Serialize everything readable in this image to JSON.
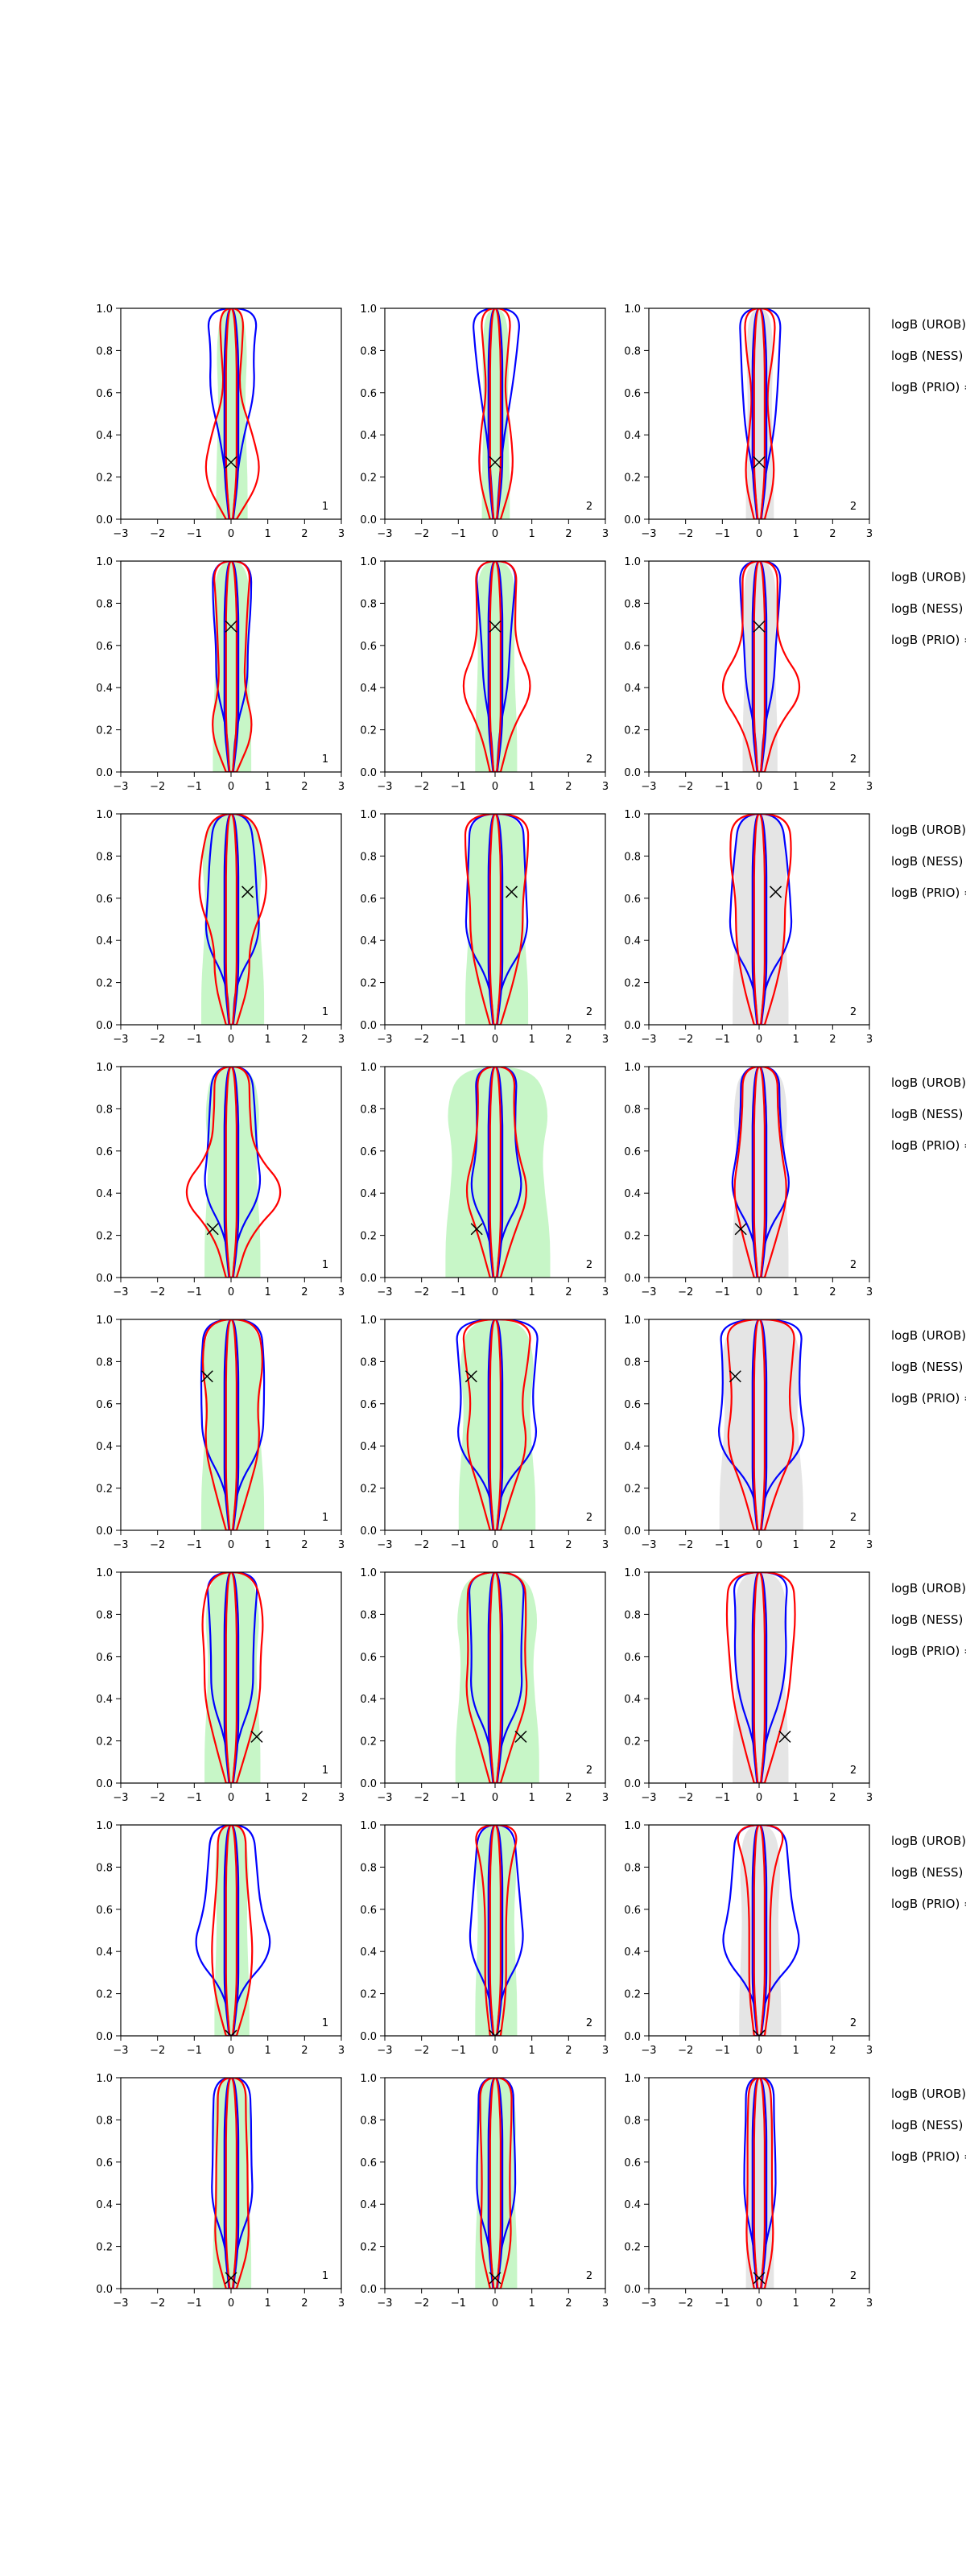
{
  "chart_data": {
    "type": "contour-grid",
    "title": "",
    "xlabel": "",
    "ylabel": "",
    "xlim": [
      -3,
      3
    ],
    "ylim": [
      0,
      1
    ],
    "x_ticks": [
      "−3",
      "−2",
      "−1",
      "0",
      "1",
      "2",
      "3"
    ],
    "y_ticks": [
      "0.0",
      "0.2",
      "0.4",
      "0.6",
      "0.8",
      "1.0"
    ],
    "grid": false,
    "colors": {
      "blue": "#0000ff",
      "red": "#ff0000",
      "green_fill": "#90ee90",
      "grey_fill": "#d3d3d3"
    },
    "side_labels": [
      "logB (UROB) =",
      "logB (NESS) =",
      "logB (PRIO) ="
    ],
    "rows": [
      {
        "marker": {
          "x": 0.0,
          "y": 0.27
        },
        "panels": [
          {
            "tag": "1",
            "fill": "green",
            "blue": [
              0.05,
              0.15,
              0.35,
              0.65,
              0.6,
              0.75
            ],
            "red": [
              0.15,
              0.85,
              0.6,
              0.2,
              0.3,
              0.35
            ],
            "inner_blue": [
              0.2,
              0.2
            ],
            "inner_red": [
              0.15,
              0.15
            ],
            "shade": [
              0.45,
              0.45
            ]
          },
          {
            "tag": "2",
            "fill": "green",
            "blue": [
              0.05,
              0.12,
              0.25,
              0.45,
              0.6,
              0.7
            ],
            "red": [
              0.15,
              0.5,
              0.45,
              0.25,
              0.35,
              0.45
            ],
            "inner_blue": [
              0.2,
              0.2
            ],
            "inner_red": [
              0.15,
              0.15
            ],
            "shade": [
              0.4,
              0.4
            ]
          },
          {
            "tag": "2",
            "fill": "grey",
            "blue": [
              0.05,
              0.15,
              0.4,
              0.5,
              0.55,
              0.6
            ],
            "red": [
              0.15,
              0.45,
              0.3,
              0.2,
              0.4,
              0.45
            ],
            "inner_blue": [
              0.2,
              0.2
            ],
            "inner_red": [
              0.15,
              0.15
            ],
            "shade": [
              0.4,
              0.4
            ]
          }
        ]
      },
      {
        "marker": {
          "x": 0.0,
          "y": 0.69
        },
        "panels": [
          {
            "tag": "1",
            "fill": "green",
            "blue": [
              0.05,
              0.12,
              0.45,
              0.45,
              0.55,
              0.55
            ],
            "red": [
              0.15,
              0.65,
              0.35,
              0.4,
              0.45,
              0.55
            ],
            "inner_blue": [
              0.2,
              0.2
            ],
            "inner_red": [
              0.15,
              0.15
            ],
            "shade": [
              0.55,
              0.55
            ]
          },
          {
            "tag": "2",
            "fill": "green",
            "blue": [
              0.05,
              0.12,
              0.35,
              0.4,
              0.5,
              0.6
            ],
            "red": [
              0.15,
              0.45,
              1.1,
              0.55,
              0.55,
              0.6
            ],
            "inner_blue": [
              0.2,
              0.2
            ],
            "inner_red": [
              0.15,
              0.15
            ],
            "shade": [
              0.6,
              0.6
            ]
          },
          {
            "tag": "2",
            "fill": "grey",
            "blue": [
              0.05,
              0.12,
              0.4,
              0.45,
              0.55,
              0.6
            ],
            "red": [
              0.15,
              0.45,
              1.3,
              0.5,
              0.5,
              0.5
            ],
            "inner_blue": [
              0.2,
              0.2
            ],
            "inner_red": [
              0.15,
              0.15
            ],
            "shade": [
              0.5,
              0.5
            ]
          }
        ]
      },
      {
        "marker": {
          "x": 0.45,
          "y": 0.63
        },
        "panels": [
          {
            "tag": "1",
            "fill": "green",
            "blue": [
              0.05,
              0.12,
              0.8,
              0.7,
              0.65,
              0.5
            ],
            "red": [
              0.15,
              0.5,
              0.5,
              1.0,
              0.9,
              0.6
            ],
            "inner_blue": [
              0.2,
              0.2
            ],
            "inner_red": [
              0.15,
              0.15
            ],
            "shade": [
              0.9,
              0.9
            ]
          },
          {
            "tag": "2",
            "fill": "green",
            "blue": [
              0.05,
              0.15,
              0.9,
              0.85,
              0.8,
              0.75
            ],
            "red": [
              0.15,
              0.5,
              0.75,
              0.75,
              0.9,
              0.9
            ],
            "inner_blue": [
              0.2,
              0.2
            ],
            "inner_red": [
              0.15,
              0.15
            ],
            "shade": [
              0.9,
              0.9
            ]
          },
          {
            "tag": "2",
            "fill": "grey",
            "blue": [
              0.05,
              0.15,
              0.9,
              0.85,
              0.75,
              0.6
            ],
            "red": [
              0.15,
              0.5,
              0.7,
              0.7,
              0.9,
              0.8
            ],
            "inner_blue": [
              0.2,
              0.2
            ],
            "inner_red": [
              0.15,
              0.15
            ],
            "shade": [
              0.8,
              0.8
            ]
          }
        ]
      },
      {
        "marker": {
          "x": -0.5,
          "y": 0.23
        },
        "panels": [
          {
            "tag": "1",
            "fill": "green",
            "blue": [
              0.05,
              0.15,
              0.85,
              0.7,
              0.65,
              0.55
            ],
            "red": [
              0.15,
              0.5,
              1.6,
              0.6,
              0.5,
              0.5
            ],
            "inner_blue": [
              0.2,
              0.2
            ],
            "inner_red": [
              0.15,
              0.15
            ],
            "shade": [
              0.8,
              0.8
            ]
          },
          {
            "tag": "2",
            "fill": "green",
            "blue": [
              0.05,
              0.15,
              0.8,
              0.55,
              0.55,
              0.6
            ],
            "red": [
              0.15,
              0.5,
              0.95,
              0.6,
              0.5,
              0.55
            ],
            "inner_blue": [
              0.2,
              0.2
            ],
            "inner_red": [
              0.15,
              0.15
            ],
            "shade": [
              1.5,
              1.5
            ]
          },
          {
            "tag": "2",
            "fill": "grey",
            "blue": [
              0.05,
              0.15,
              0.9,
              0.65,
              0.55,
              0.55
            ],
            "red": [
              0.15,
              0.5,
              0.8,
              0.6,
              0.5,
              0.5
            ],
            "inner_blue": [
              0.2,
              0.2
            ],
            "inner_red": [
              0.15,
              0.15
            ],
            "shade": [
              0.8,
              0.8
            ]
          }
        ]
      },
      {
        "marker": {
          "x": -0.65,
          "y": 0.73
        },
        "panels": [
          {
            "tag": "1",
            "fill": "green",
            "blue": [
              0.05,
              0.15,
              0.85,
              0.9,
              0.9,
              0.8
            ],
            "red": [
              0.15,
              0.5,
              0.8,
              0.7,
              0.9,
              0.7
            ],
            "inner_blue": [
              0.2,
              0.2
            ],
            "inner_red": [
              0.15,
              0.15
            ],
            "shade": [
              0.9,
              0.9
            ]
          },
          {
            "tag": "2",
            "fill": "green",
            "blue": [
              0.05,
              0.15,
              1.2,
              1.0,
              1.1,
              1.2
            ],
            "red": [
              0.15,
              0.5,
              0.9,
              0.7,
              0.9,
              1.0
            ],
            "inner_blue": [
              0.2,
              0.2
            ],
            "inner_red": [
              0.15,
              0.15
            ],
            "shade": [
              1.1,
              1.1
            ]
          },
          {
            "tag": "2",
            "fill": "grey",
            "blue": [
              0.05,
              0.15,
              1.3,
              1.1,
              1.1,
              1.2
            ],
            "red": [
              0.15,
              0.5,
              1.0,
              0.8,
              0.9,
              1.0
            ],
            "inner_blue": [
              0.2,
              0.2
            ],
            "inner_red": [
              0.15,
              0.15
            ],
            "shade": [
              1.2,
              1.2
            ]
          }
        ]
      },
      {
        "marker": {
          "x": 0.7,
          "y": 0.22
        },
        "panels": [
          {
            "tag": "1",
            "fill": "green",
            "blue": [
              0.05,
              0.15,
              0.6,
              0.6,
              0.65,
              0.75
            ],
            "red": [
              0.15,
              0.5,
              0.8,
              0.8,
              0.9,
              0.6
            ],
            "inner_blue": [
              0.2,
              0.2
            ],
            "inner_red": [
              0.15,
              0.15
            ],
            "shade": [
              0.8,
              0.8
            ]
          },
          {
            "tag": "2",
            "fill": "green",
            "blue": [
              0.05,
              0.15,
              0.75,
              0.7,
              0.75,
              0.8
            ],
            "red": [
              0.15,
              0.5,
              0.9,
              0.8,
              0.85,
              0.8
            ],
            "inner_blue": [
              0.2,
              0.2
            ],
            "inner_red": [
              0.15,
              0.15
            ],
            "shade": [
              1.2,
              1.2
            ]
          },
          {
            "tag": "2",
            "fill": "grey",
            "blue": [
              0.05,
              0.15,
              0.6,
              0.75,
              0.7,
              0.8
            ],
            "red": [
              0.15,
              0.5,
              0.8,
              0.9,
              1.0,
              0.9
            ],
            "inner_blue": [
              0.2,
              0.2
            ],
            "inner_red": [
              0.15,
              0.15
            ],
            "shade": [
              0.8,
              0.8
            ]
          }
        ]
      },
      {
        "marker": {
          "x": 0.0,
          "y": 0.0
        },
        "panels": [
          {
            "tag": "1",
            "fill": "green",
            "blue": [
              0.05,
              0.15,
              1.2,
              0.8,
              0.7,
              0.6
            ],
            "red": [
              0.15,
              0.5,
              0.6,
              0.5,
              0.4,
              0.4
            ],
            "inner_blue": [
              0.2,
              0.2
            ],
            "inner_red": [
              0.15,
              0.15
            ],
            "shade": [
              0.5,
              0.5
            ]
          },
          {
            "tag": "2",
            "fill": "green",
            "blue": [
              0.05,
              0.15,
              0.8,
              0.7,
              0.6,
              0.5
            ],
            "red": [
              0.15,
              0.3,
              0.3,
              0.3,
              0.4,
              0.7
            ],
            "inner_blue": [
              0.2,
              0.2
            ],
            "inner_red": [
              0.15,
              0.15
            ],
            "shade": [
              0.6,
              0.6
            ]
          },
          {
            "tag": "2",
            "fill": "grey",
            "blue": [
              0.05,
              0.15,
              1.2,
              0.9,
              0.8,
              0.7
            ],
            "red": [
              0.15,
              0.3,
              0.3,
              0.3,
              0.4,
              0.8
            ],
            "inner_blue": [
              0.2,
              0.2
            ],
            "inner_red": [
              0.15,
              0.15
            ],
            "shade": [
              0.6,
              0.6
            ]
          }
        ]
      },
      {
        "marker": {
          "x": 0.0,
          "y": 0.05
        },
        "panels": [
          {
            "tag": "1",
            "fill": "green",
            "blue": [
              0.05,
              0.15,
              0.6,
              0.55,
              0.55,
              0.5
            ],
            "red": [
              0.15,
              0.5,
              0.45,
              0.45,
              0.4,
              0.4
            ],
            "inner_blue": [
              0.2,
              0.2
            ],
            "inner_red": [
              0.15,
              0.15
            ],
            "shade": [
              0.55,
              0.55
            ]
          },
          {
            "tag": "2",
            "fill": "green",
            "blue": [
              0.05,
              0.15,
              0.55,
              0.55,
              0.5,
              0.5
            ],
            "red": [
              0.15,
              0.45,
              0.4,
              0.4,
              0.45,
              0.45
            ],
            "inner_blue": [
              0.2,
              0.2
            ],
            "inner_red": [
              0.15,
              0.15
            ],
            "shade": [
              0.6,
              0.6
            ]
          },
          {
            "tag": "2",
            "fill": "grey",
            "blue": [
              0.05,
              0.15,
              0.45,
              0.45,
              0.4,
              0.4
            ],
            "red": [
              0.15,
              0.4,
              0.35,
              0.35,
              0.35,
              0.3
            ],
            "inner_blue": [
              0.2,
              0.2
            ],
            "inner_red": [
              0.15,
              0.15
            ],
            "shade": [
              0.4,
              0.4
            ]
          }
        ]
      }
    ]
  }
}
